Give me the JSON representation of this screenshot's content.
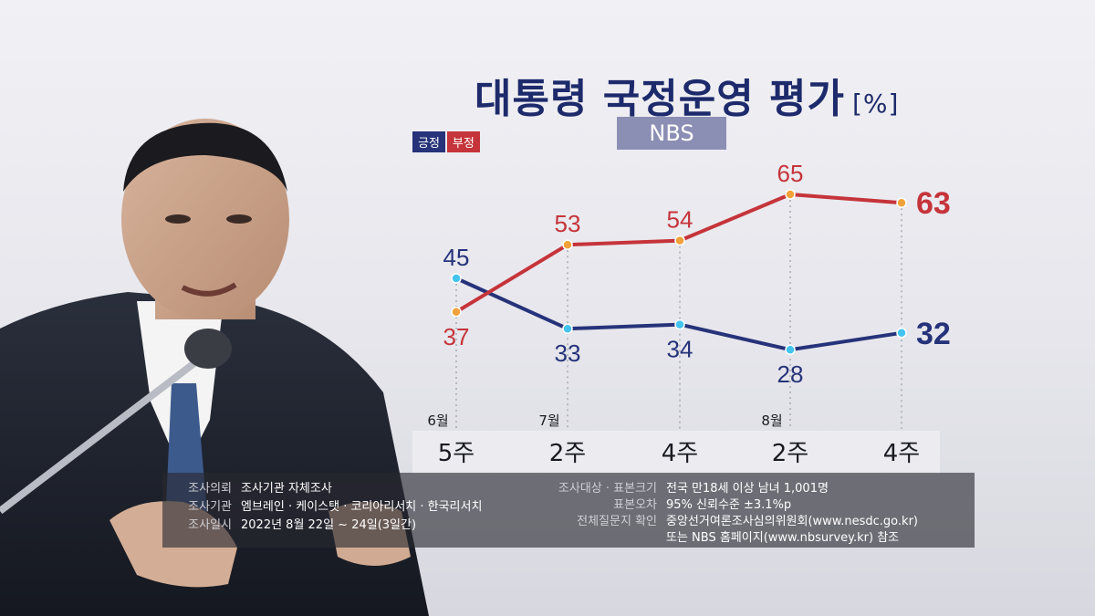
{
  "title": "대통령 국정운영 평가",
  "unit": "[%]",
  "source": "NBS",
  "legend": {
    "positive": "긍정",
    "negative": "부정"
  },
  "colors": {
    "positive": "#26337a",
    "negative": "#c5343a",
    "marker_pos": "#43c3ee",
    "marker_neg": "#f2a23a"
  },
  "chart_data": {
    "type": "line",
    "categories": [
      "5주",
      "2주",
      "4주",
      "2주",
      "4주"
    ],
    "month_labels": [
      "6월",
      "7월",
      "",
      "8월",
      ""
    ],
    "series": [
      {
        "name": "긍정",
        "values": [
          45,
          33,
          34,
          28,
          32
        ]
      },
      {
        "name": "부정",
        "values": [
          37,
          53,
          54,
          65,
          63
        ]
      }
    ],
    "ylim": [
      20,
      70
    ]
  },
  "info": {
    "left": [
      {
        "label": "조사의뢰",
        "value": "조사기관 자체조사"
      },
      {
        "label": "조사기관",
        "value": "엠브레인 · 케이스탯 · 코리아리서치 · 한국리서치"
      },
      {
        "label": "조사일시",
        "value": "2022년 8월 22일 ~ 24일(3일간)"
      }
    ],
    "right": [
      {
        "label": "조사대상 · 표본크기",
        "value": "전국 만18세 이상 남녀 1,001명"
      },
      {
        "label": "표본오차",
        "value": "95% 신뢰수준 ±3.1%p"
      },
      {
        "label": "전체질문지 확인",
        "value": "중앙선거여론조사심의위원회(www.nesdc.go.kr)"
      },
      {
        "label": "",
        "value": "또는 NBS 홈페이지(www.nbsurvey.kr) 참조"
      }
    ]
  }
}
